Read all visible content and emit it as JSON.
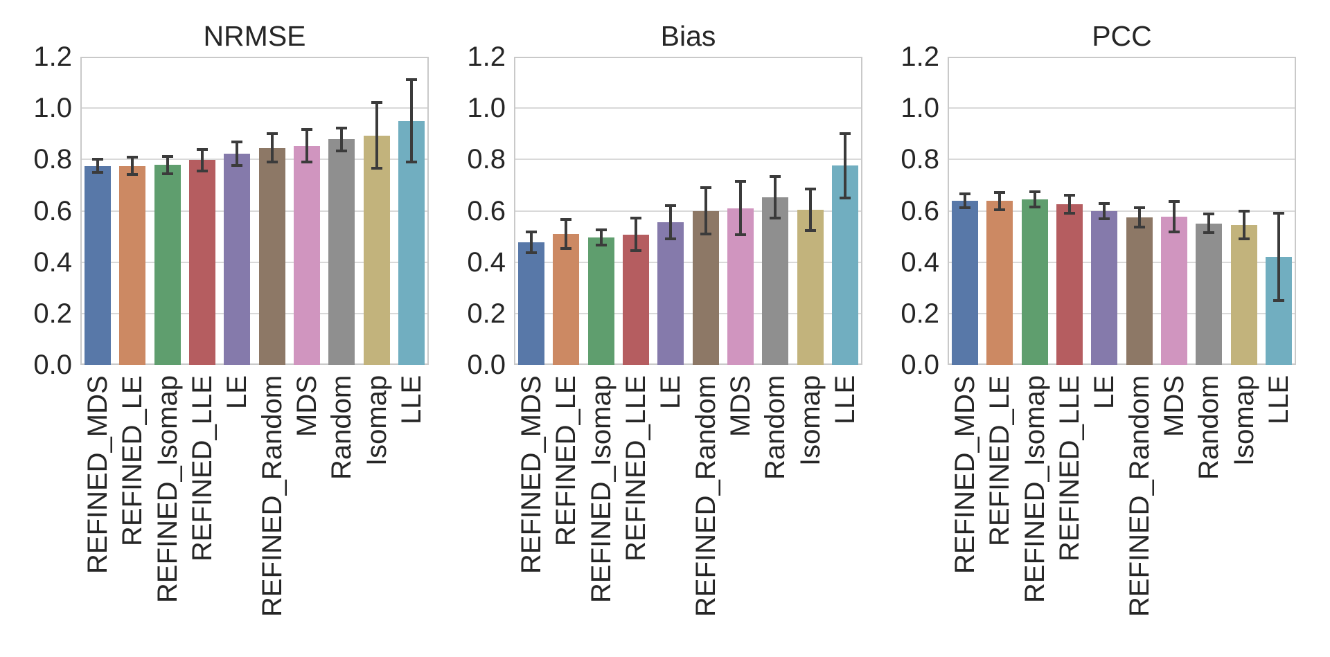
{
  "chart_data": [
    {
      "type": "bar",
      "title": "NRMSE",
      "categories": [
        "REFINED_MDS",
        "REFINED_LE",
        "REFINED_Isomap",
        "REFINED_LLE",
        "LE",
        "REFINED_Random",
        "MDS",
        "Random",
        "Isomap",
        "LLE"
      ],
      "values": [
        0.775,
        0.775,
        0.778,
        0.797,
        0.822,
        0.845,
        0.853,
        0.878,
        0.893,
        0.95
      ],
      "errors": [
        0.026,
        0.033,
        0.034,
        0.041,
        0.045,
        0.056,
        0.063,
        0.044,
        0.128,
        0.16
      ],
      "ylim": [
        0,
        1.2
      ],
      "ytick_labels": [
        "0.0",
        "0.2",
        "0.4",
        "0.6",
        "0.8",
        "1.0",
        "1.2"
      ],
      "grid": "horizontal",
      "legend": "none"
    },
    {
      "type": "bar",
      "title": "Bias",
      "categories": [
        "REFINED_MDS",
        "REFINED_LE",
        "REFINED_Isomap",
        "REFINED_LLE",
        "LE",
        "REFINED_Random",
        "MDS",
        "Random",
        "Isomap",
        "LLE"
      ],
      "values": [
        0.478,
        0.51,
        0.497,
        0.508,
        0.555,
        0.6,
        0.61,
        0.653,
        0.604,
        0.776
      ],
      "errors": [
        0.04,
        0.056,
        0.03,
        0.063,
        0.065,
        0.09,
        0.104,
        0.08,
        0.081,
        0.125
      ],
      "ylim": [
        0,
        1.2
      ],
      "ytick_labels": [
        "0.0",
        "0.2",
        "0.4",
        "0.6",
        "0.8",
        "1.0",
        "1.2"
      ],
      "grid": "horizontal",
      "legend": "none"
    },
    {
      "type": "bar",
      "title": "PCC",
      "categories": [
        "REFINED_MDS",
        "REFINED_LE",
        "REFINED_Isomap",
        "REFINED_LLE",
        "LE",
        "REFINED_Random",
        "MDS",
        "Random",
        "Isomap",
        "LLE"
      ],
      "values": [
        0.64,
        0.638,
        0.645,
        0.625,
        0.599,
        0.574,
        0.577,
        0.551,
        0.545,
        0.42
      ],
      "errors": [
        0.027,
        0.034,
        0.029,
        0.035,
        0.03,
        0.038,
        0.06,
        0.036,
        0.054,
        0.17
      ],
      "ylim": [
        0,
        1.2
      ],
      "ytick_labels": [
        "0.0",
        "0.2",
        "0.4",
        "0.6",
        "0.8",
        "1.0",
        "1.2"
      ],
      "grid": "horizontal",
      "legend": "none"
    }
  ],
  "style": {
    "bar_colors": [
      "#5878a8",
      "#cc8963",
      "#5f9e6e",
      "#b55d60",
      "#857aab",
      "#8d7866",
      "#d095bf",
      "#8f8f8f",
      "#c2b37c",
      "#71aec0"
    ],
    "errorbar_color": "#3b3b3b",
    "text_color": "#262626",
    "grid_color": "#d9d9d9",
    "spine_color": "#c9c9c9",
    "background_color": "#ffffff"
  }
}
